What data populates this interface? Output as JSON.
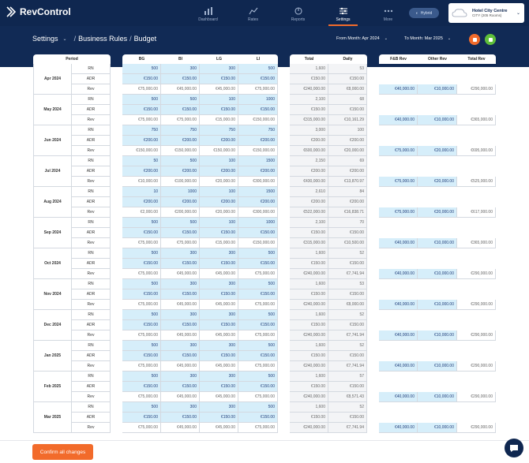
{
  "app": {
    "name": "RevControl"
  },
  "nav": [
    {
      "label": "Dashboard",
      "icon": "bar-chart-icon"
    },
    {
      "label": "Rates",
      "icon": "rates-icon"
    },
    {
      "label": "Reports",
      "icon": "reports-icon"
    },
    {
      "label": "Settings",
      "icon": "sliders-icon",
      "active": true
    },
    {
      "label": "More",
      "icon": "more-icon"
    }
  ],
  "mode_badge": "Hybrid",
  "hotel": {
    "name": "Hotel City Centre",
    "rooms": "CITY (205 Rooms)"
  },
  "breadcrumb": {
    "root": "Settings",
    "section": "Business Rules",
    "page": "Budget"
  },
  "from_month": "From Month: Apr 2024",
  "to_month": "To Month: Mar 2025",
  "headers": {
    "period": "Period",
    "segments": [
      "BG",
      "BI",
      "LG",
      "LI"
    ],
    "total": "Total",
    "daily": "Daily",
    "fb": "F&B Rev",
    "other": "Other Rev",
    "total_rev": "Total Rev"
  },
  "metrics": [
    "RN",
    "ADR",
    "Rev"
  ],
  "months": [
    {
      "label": "Apr 2024",
      "seg": [
        [
          "500",
          "300",
          "300",
          "500"
        ],
        [
          "€150.00",
          "€150.00",
          "€150.00",
          "€150.00"
        ],
        [
          "€75,000.00",
          "€45,000.00",
          "€45,000.00",
          "€75,000.00"
        ]
      ],
      "tot": [
        [
          "1,600",
          "53"
        ],
        [
          "€150.00",
          "€150.00"
        ],
        [
          "€240,000.00",
          "€8,000.00"
        ]
      ],
      "extra": [
        "€40,000.00",
        "€10,000.00",
        "€290,000.00"
      ]
    },
    {
      "label": "May 2024",
      "seg": [
        [
          "500",
          "500",
          "100",
          "1000"
        ],
        [
          "€150.00",
          "€150.00",
          "€150.00",
          "€150.00"
        ],
        [
          "€75,000.00",
          "€75,000.00",
          "€15,000.00",
          "€150,000.00"
        ]
      ],
      "tot": [
        [
          "2,100",
          "68"
        ],
        [
          "€150.00",
          "€150.00"
        ],
        [
          "€315,000.00",
          "€10,161.29"
        ]
      ],
      "extra": [
        "€40,000.00",
        "€10,000.00",
        "€365,000.00"
      ]
    },
    {
      "label": "Jun 2024",
      "seg": [
        [
          "750",
          "750",
          "750",
          "750"
        ],
        [
          "€200.00",
          "€200.00",
          "€200.00",
          "€200.00"
        ],
        [
          "€150,000.00",
          "€150,000.00",
          "€150,000.00",
          "€150,000.00"
        ]
      ],
      "tot": [
        [
          "3,000",
          "100"
        ],
        [
          "€200.00",
          "€200.00"
        ],
        [
          "€600,000.00",
          "€20,000.00"
        ]
      ],
      "extra": [
        "€75,000.00",
        "€20,000.00",
        "€695,000.00"
      ]
    },
    {
      "label": "Jul 2024",
      "seg": [
        [
          "50",
          "500",
          "100",
          "1500"
        ],
        [
          "€200.00",
          "€200.00",
          "€200.00",
          "€200.00"
        ],
        [
          "€10,000.00",
          "€100,000.00",
          "€20,000.00",
          "€300,000.00"
        ]
      ],
      "tot": [
        [
          "2,150",
          "69"
        ],
        [
          "€200.00",
          "€200.00"
        ],
        [
          "€430,000.00",
          "€13,870.97"
        ]
      ],
      "extra": [
        "€75,000.00",
        "€20,000.00",
        "€525,000.00"
      ]
    },
    {
      "label": "Aug 2024",
      "seg": [
        [
          "10",
          "1000",
          "100",
          "1500"
        ],
        [
          "€200.00",
          "€200.00",
          "€200.00",
          "€200.00"
        ],
        [
          "€2,000.00",
          "€200,000.00",
          "€20,000.00",
          "€300,000.00"
        ]
      ],
      "tot": [
        [
          "2,610",
          "84"
        ],
        [
          "€200.00",
          "€200.00"
        ],
        [
          "€522,000.00",
          "€16,838.71"
        ]
      ],
      "extra": [
        "€75,000.00",
        "€20,000.00",
        "€617,000.00"
      ]
    },
    {
      "label": "Sep 2024",
      "seg": [
        [
          "500",
          "500",
          "100",
          "1000"
        ],
        [
          "€150.00",
          "€150.00",
          "€150.00",
          "€150.00"
        ],
        [
          "€75,000.00",
          "€75,000.00",
          "€15,000.00",
          "€150,000.00"
        ]
      ],
      "tot": [
        [
          "2,100",
          "70"
        ],
        [
          "€150.00",
          "€150.00"
        ],
        [
          "€315,000.00",
          "€10,500.00"
        ]
      ],
      "extra": [
        "€40,000.00",
        "€10,000.00",
        "€365,000.00"
      ]
    },
    {
      "label": "Oct 2024",
      "seg": [
        [
          "500",
          "300",
          "300",
          "500"
        ],
        [
          "€150.00",
          "€150.00",
          "€150.00",
          "€150.00"
        ],
        [
          "€75,000.00",
          "€45,000.00",
          "€45,000.00",
          "€75,000.00"
        ]
      ],
      "tot": [
        [
          "1,600",
          "52"
        ],
        [
          "€150.00",
          "€150.00"
        ],
        [
          "€240,000.00",
          "€7,741.94"
        ]
      ],
      "extra": [
        "€40,000.00",
        "€10,000.00",
        "€290,000.00"
      ]
    },
    {
      "label": "Nov 2024",
      "seg": [
        [
          "500",
          "300",
          "300",
          "500"
        ],
        [
          "€150.00",
          "€150.00",
          "€150.00",
          "€150.00"
        ],
        [
          "€75,000.00",
          "€45,000.00",
          "€45,000.00",
          "€75,000.00"
        ]
      ],
      "tot": [
        [
          "1,600",
          "53"
        ],
        [
          "€150.00",
          "€150.00"
        ],
        [
          "€240,000.00",
          "€8,000.00"
        ]
      ],
      "extra": [
        "€40,000.00",
        "€10,000.00",
        "€290,000.00"
      ]
    },
    {
      "label": "Dec 2024",
      "seg": [
        [
          "500",
          "300",
          "300",
          "500"
        ],
        [
          "€150.00",
          "€150.00",
          "€150.00",
          "€150.00"
        ],
        [
          "€75,000.00",
          "€45,000.00",
          "€45,000.00",
          "€75,000.00"
        ]
      ],
      "tot": [
        [
          "1,600",
          "52"
        ],
        [
          "€150.00",
          "€150.00"
        ],
        [
          "€240,000.00",
          "€7,741.94"
        ]
      ],
      "extra": [
        "€40,000.00",
        "€10,000.00",
        "€290,000.00"
      ]
    },
    {
      "label": "Jan 2025",
      "seg": [
        [
          "500",
          "300",
          "300",
          "500"
        ],
        [
          "€150.00",
          "€150.00",
          "€150.00",
          "€150.00"
        ],
        [
          "€75,000.00",
          "€45,000.00",
          "€45,000.00",
          "€75,000.00"
        ]
      ],
      "tot": [
        [
          "1,600",
          "52"
        ],
        [
          "€150.00",
          "€150.00"
        ],
        [
          "€240,000.00",
          "€7,741.94"
        ]
      ],
      "extra": [
        "€40,000.00",
        "€10,000.00",
        "€290,000.00"
      ]
    },
    {
      "label": "Feb 2025",
      "seg": [
        [
          "500",
          "300",
          "300",
          "500"
        ],
        [
          "€150.00",
          "€150.00",
          "€150.00",
          "€150.00"
        ],
        [
          "€75,000.00",
          "€45,000.00",
          "€45,000.00",
          "€75,000.00"
        ]
      ],
      "tot": [
        [
          "1,600",
          "57"
        ],
        [
          "€150.00",
          "€150.00"
        ],
        [
          "€240,000.00",
          "€8,571.43"
        ]
      ],
      "extra": [
        "€40,000.00",
        "€10,000.00",
        "€290,000.00"
      ]
    },
    {
      "label": "Mar 2025",
      "seg": [
        [
          "500",
          "300",
          "300",
          "500"
        ],
        [
          "€150.00",
          "€150.00",
          "€150.00",
          "€150.00"
        ],
        [
          "€75,000.00",
          "€45,000.00",
          "€45,000.00",
          "€75,000.00"
        ]
      ],
      "tot": [
        [
          "1,600",
          "52"
        ],
        [
          "€150.00",
          "€150.00"
        ],
        [
          "€240,000.00",
          "€7,741.94"
        ]
      ],
      "extra": [
        "€40,000.00",
        "€10,000.00",
        "€290,000.00"
      ]
    }
  ],
  "confirm_label": "Confirm all changes",
  "colors": {
    "navy": "#0f2750",
    "orange": "#f26b2b",
    "green": "#5fbf3a",
    "editable": "#d6eefa"
  }
}
